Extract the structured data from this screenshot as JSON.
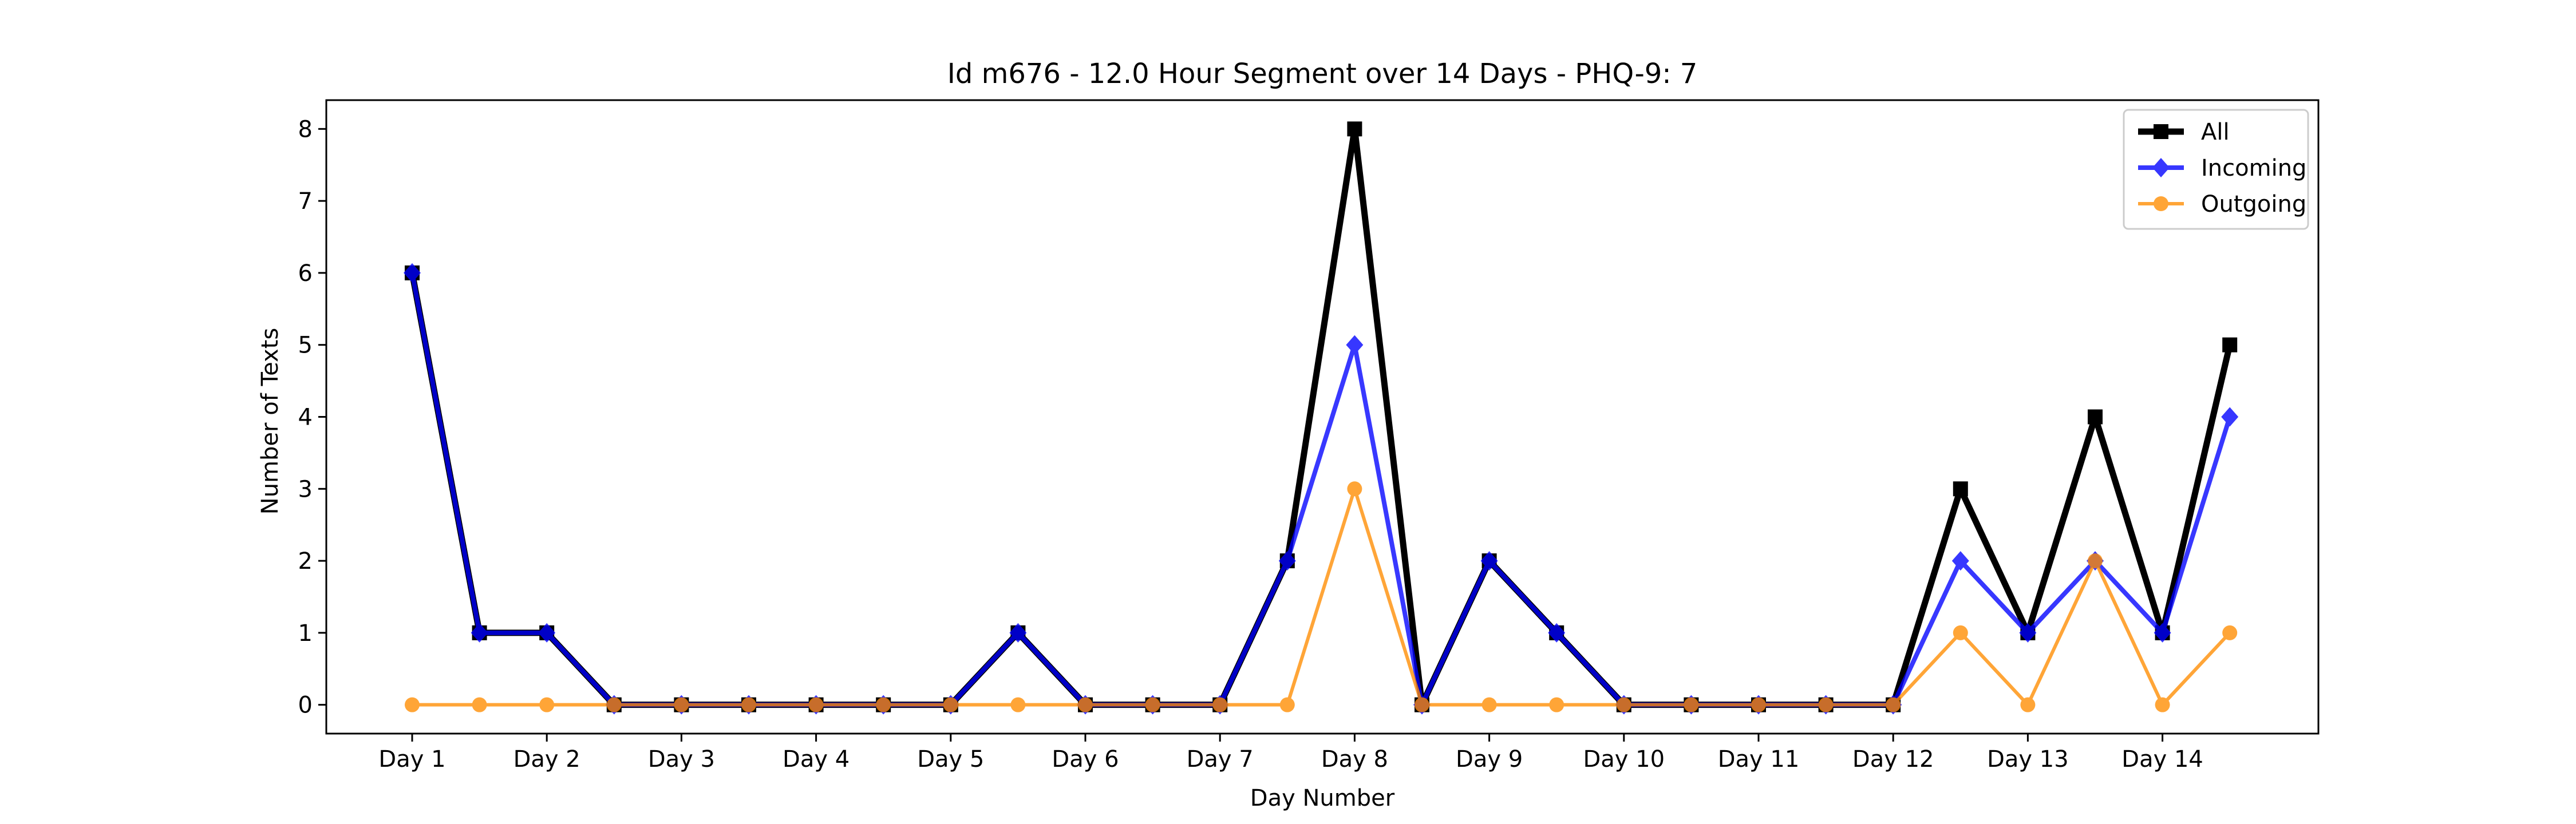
{
  "chart_data": {
    "type": "line",
    "title": "Id m676 - 12.0 Hour Segment over 14 Days - PHQ-9: 7",
    "xlabel": "Day Number",
    "ylabel": "Number of Texts",
    "x_tick_labels": [
      "Day 1",
      "Day 2",
      "Day 3",
      "Day 4",
      "Day 5",
      "Day 6",
      "Day 7",
      "Day 8",
      "Day 9",
      "Day 10",
      "Day 11",
      "Day 12",
      "Day 13",
      "Day 14"
    ],
    "y_ticks": [
      0,
      1,
      2,
      3,
      4,
      5,
      6,
      7,
      8
    ],
    "ylim": [
      -0.4,
      8.4
    ],
    "legend_position": "top-right",
    "grid": false,
    "series": [
      {
        "name": "All",
        "color": "#000000",
        "marker": "square",
        "values": [
          6,
          1,
          1,
          0,
          0,
          0,
          0,
          0,
          0,
          1,
          0,
          0,
          0,
          2,
          8,
          0,
          2,
          1,
          0,
          0,
          0,
          0,
          0,
          3,
          1,
          4,
          1,
          5
        ]
      },
      {
        "name": "Incoming",
        "color": "#0000ff",
        "marker": "diamond",
        "values": [
          6,
          1,
          1,
          0,
          0,
          0,
          0,
          0,
          0,
          1,
          0,
          0,
          0,
          2,
          5,
          0,
          2,
          1,
          0,
          0,
          0,
          0,
          0,
          2,
          1,
          2,
          1,
          4
        ]
      },
      {
        "name": "Outgoing",
        "color": "#ff8c00",
        "marker": "circle",
        "values": [
          0,
          0,
          0,
          0,
          0,
          0,
          0,
          0,
          0,
          0,
          0,
          0,
          0,
          0,
          3,
          0,
          0,
          0,
          0,
          0,
          0,
          0,
          0,
          1,
          0,
          2,
          0,
          1
        ]
      }
    ]
  }
}
